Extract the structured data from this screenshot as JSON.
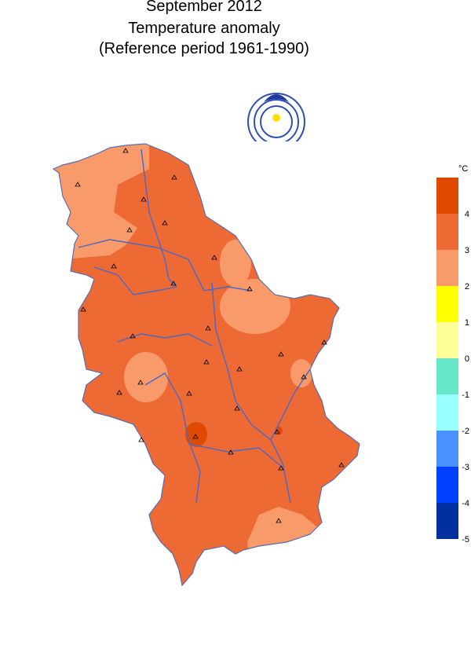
{
  "title": [
    "September 2012",
    "Temperature anomaly",
    "(Reference period 1961-1990)"
  ],
  "legend": {
    "unit": "°C",
    "ticks": [
      4,
      3,
      2,
      1,
      0,
      -1,
      -2,
      -3,
      -4,
      -5
    ],
    "colors": [
      "#e04a00",
      "#ee6a35",
      "#f99a6a",
      "#ffff00",
      "#ffff99",
      "#66e8c8",
      "#99ffff",
      "#4a90ff",
      "#0040ff",
      "#0030a0"
    ]
  }
}
